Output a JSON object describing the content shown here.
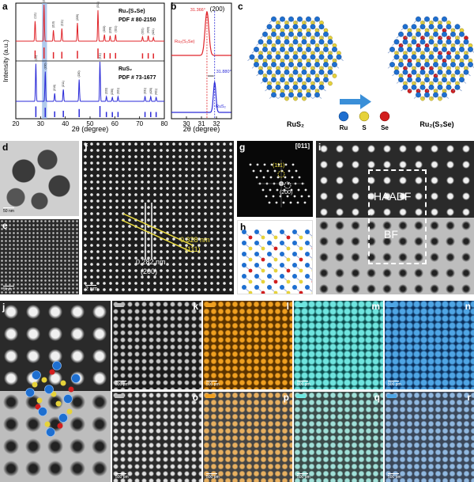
{
  "panels": {
    "a": "a",
    "b": "b",
    "c": "c",
    "d": "d",
    "e": "e",
    "f": "f",
    "g": "g",
    "h": "h",
    "i": "i",
    "j": "j",
    "k": "k",
    "l": "l",
    "m": "m",
    "n": "n",
    "o": "o",
    "p": "p",
    "q": "q",
    "r": "r"
  },
  "panel_a": {
    "ylabel": "Intensity (a.u.)",
    "xlabel": "2θ (degree)",
    "top_name": "Ru₂(S₃Se)",
    "top_pdf": "PDF # 80-2150",
    "bottom_name": "RuS₂",
    "bottom_pdf": "PDF # 73-1677",
    "top_peak_labels": [
      "(111)",
      "(200)",
      "(210)",
      "(211)",
      "(220)",
      "(311)",
      "(222)",
      "(230)",
      "(321)",
      "(331)",
      "(420)",
      "(421)"
    ],
    "bottom_peak_labels": [
      "(111)",
      "(200)",
      "(210)",
      "(211)",
      "(220)",
      "(311)",
      "(222)",
      "(230)",
      "(321)",
      "(331)",
      "(420)",
      "(421)"
    ]
  },
  "panel_b": {
    "xlabel": "2θ (degree)",
    "hkl": "(200)",
    "top_peak": "31.366°",
    "bottom_peak": "31.880°",
    "top_name": "Ru₂(S₃Se)",
    "bottom_name": "RuS₂"
  },
  "panel_c": {
    "left_name": "RuS₂",
    "right_name": "Ru₂(S₃Se)",
    "legend": [
      "Ru",
      "S",
      "Se"
    ]
  },
  "panel_d": {
    "scale": "50 nm"
  },
  "panel_e": {
    "scale": "5 nm"
  },
  "panel_f": {
    "d1": "0.282 nm",
    "hkl1": "(200)",
    "d2": "0.328 nm",
    "hkl2": "(111)",
    "scale": "2 nm"
  },
  "panel_g": {
    "zone": "[011]",
    "spot1": "(111)",
    "spot2": "(200)"
  },
  "panel_i": {
    "label_top": "HAADF",
    "label_bottom": "BF"
  },
  "maps": {
    "scale": "500 pm"
  },
  "colors": {
    "ru": "#1e6fd0",
    "s": "#e6d23a",
    "se": "#d21e1e",
    "red_series": "#e0242a",
    "blue_series": "#2a2ad8",
    "highlight": "#8fb2e6"
  },
  "chart_data": [
    {
      "type": "line",
      "panel": "a",
      "xlabel": "2θ (degree)",
      "ylabel": "Intensity (a.u.)",
      "xlim": [
        20,
        80
      ],
      "x_ticks": [
        20,
        30,
        40,
        50,
        60,
        70,
        80
      ],
      "series": [
        {
          "name": "Ru₂(S₃Se)",
          "peaks_x": [
            27.8,
            31.4,
            35.2,
            38.6,
            44.9,
            53.2,
            55.8,
            58.1,
            60.3,
            71.2,
            73.5,
            75.6
          ],
          "peaks_rel": [
            0.55,
            1.0,
            0.3,
            0.35,
            0.5,
            0.85,
            0.18,
            0.15,
            0.18,
            0.12,
            0.15,
            0.1
          ]
        },
        {
          "name": "RuS₂",
          "peaks_x": [
            28.1,
            31.9,
            35.7,
            39.2,
            45.6,
            54.0,
            56.6,
            59.0,
            61.3,
            72.2,
            74.5,
            76.7
          ],
          "peaks_rel": [
            0.95,
            0.75,
            0.2,
            0.3,
            0.55,
            1.0,
            0.12,
            0.1,
            0.12,
            0.12,
            0.12,
            0.1
          ]
        }
      ]
    },
    {
      "type": "line",
      "panel": "b",
      "xlabel": "2θ (degree)",
      "xlim": [
        29,
        33
      ],
      "x_ticks": [
        30,
        31,
        32
      ],
      "series": [
        {
          "name": "Ru₂(S₃Se)",
          "peak_x": 31.366
        },
        {
          "name": "RuS₂",
          "peak_x": 31.88
        }
      ]
    }
  ]
}
